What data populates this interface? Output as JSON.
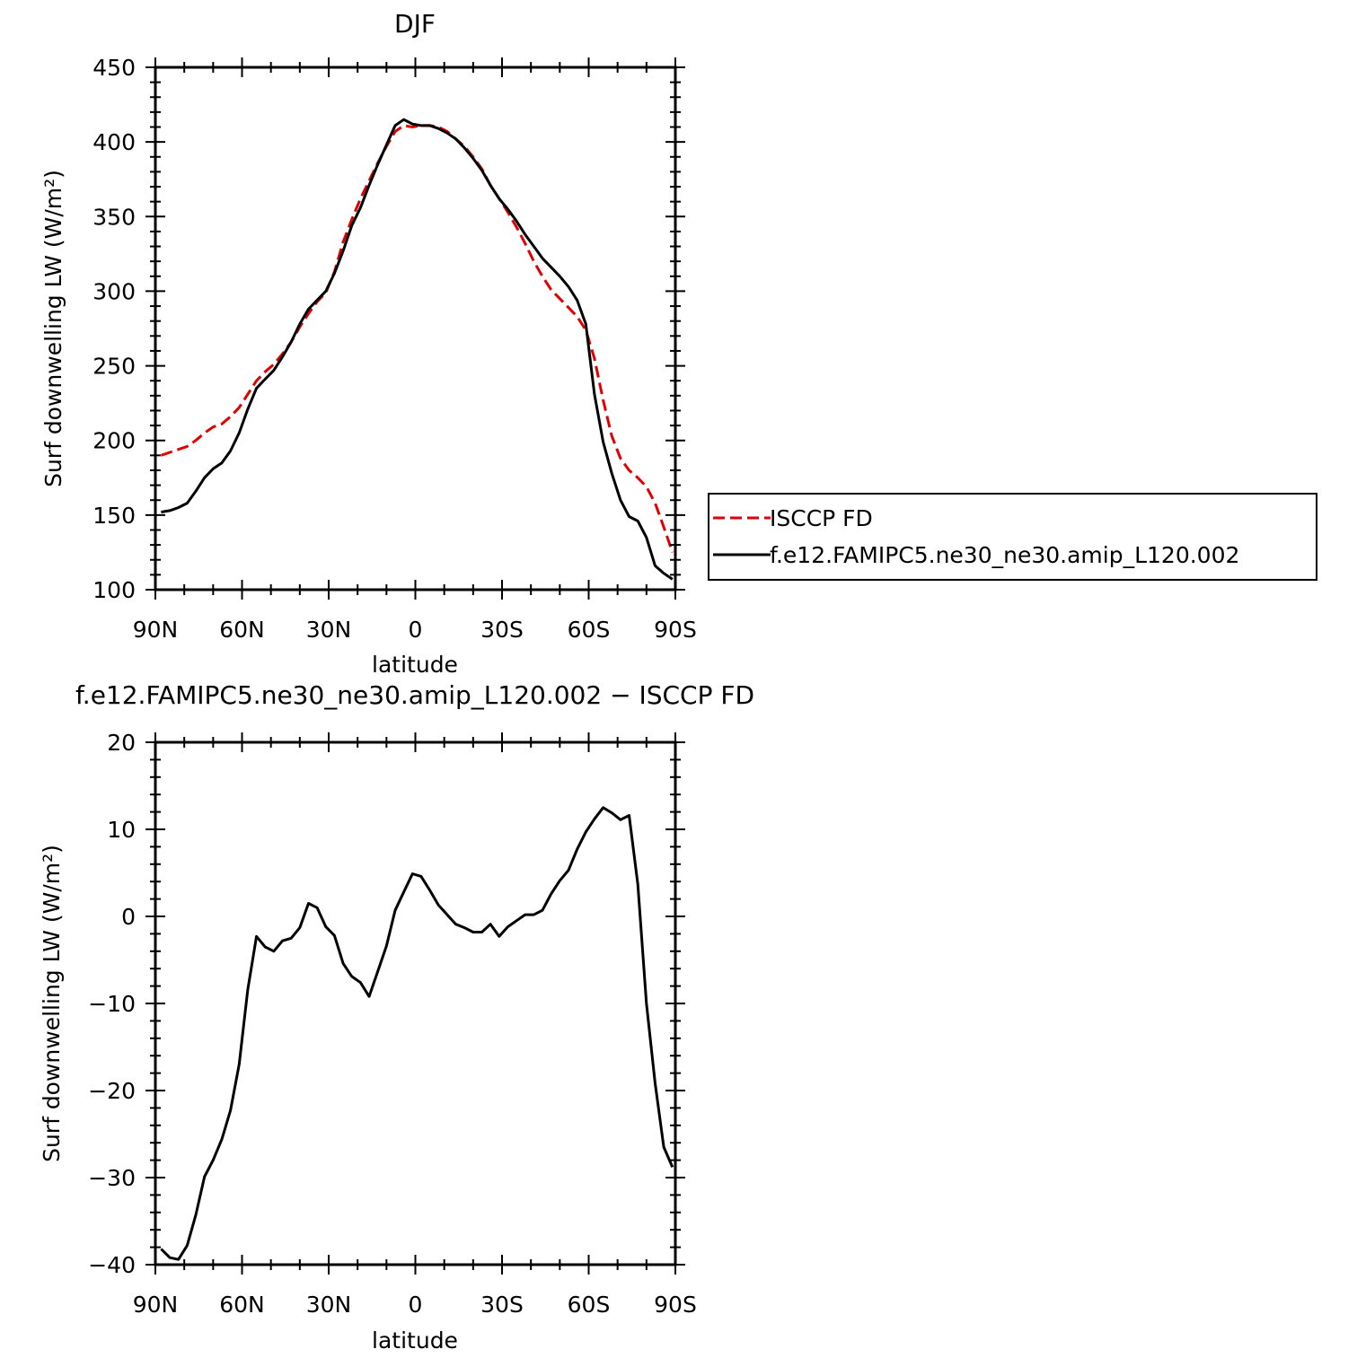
{
  "colors": {
    "isccp": "#e00000",
    "model": "#000000",
    "axis": "#000000"
  },
  "chart_data": [
    {
      "type": "line",
      "title": "DJF",
      "xlabel": "latitude",
      "ylabel": "Surf downwelling LW (W/m²)",
      "xlim": [
        90,
        -90
      ],
      "ylim": [
        100,
        450
      ],
      "xticks": [
        90,
        60,
        30,
        0,
        -30,
        -60,
        -90
      ],
      "xtick_labels": [
        "90N",
        "60N",
        "30N",
        "0",
        "30S",
        "60S",
        "90S"
      ],
      "yticks": [
        100,
        150,
        200,
        250,
        300,
        350,
        400,
        450
      ],
      "ytick_labels": [
        "100",
        "150",
        "200",
        "250",
        "300",
        "350",
        "400",
        "450"
      ],
      "grid": false,
      "legend_position": "right",
      "series": [
        {
          "name": "ISCCP FD",
          "style": "dashed",
          "color": "#e00000",
          "x": [
            88,
            85,
            82,
            79,
            76,
            73,
            70,
            67,
            64,
            61,
            58,
            55,
            52,
            49,
            46,
            43,
            40,
            37,
            34,
            31,
            28,
            25,
            22,
            19,
            16,
            13,
            10,
            7,
            4,
            1,
            -2,
            -5,
            -8,
            -11,
            -14,
            -17,
            -20,
            -23,
            -26,
            -29,
            -32,
            -35,
            -38,
            -41,
            -44,
            -47,
            -50,
            -53,
            -56,
            -59,
            -62,
            -65,
            -68,
            -71,
            -74,
            -77,
            -80,
            -83,
            -86,
            -89
          ],
          "y": [
            190,
            192,
            194,
            196,
            200,
            205,
            209,
            211,
            216,
            222,
            231,
            240,
            246,
            251,
            258,
            266,
            276,
            285,
            293,
            299,
            313,
            333,
            348,
            362,
            374,
            386,
            397,
            407,
            411,
            410,
            411,
            411,
            410,
            407,
            402,
            397,
            390,
            382,
            371,
            362,
            353,
            343,
            332,
            320,
            310,
            301,
            295,
            289,
            283,
            274,
            255,
            227,
            203,
            188,
            180,
            175,
            169,
            158,
            142,
            125
          ]
        },
        {
          "name": "f.e12.FAMIPC5.ne30_ne30.amip_L120.002",
          "style": "solid",
          "color": "#000000",
          "x": [
            88,
            85,
            82,
            79,
            76,
            73,
            70,
            67,
            64,
            61,
            58,
            55,
            52,
            49,
            46,
            43,
            40,
            37,
            34,
            31,
            28,
            25,
            22,
            19,
            16,
            13,
            10,
            7,
            4,
            1,
            -2,
            -5,
            -8,
            -11,
            -14,
            -17,
            -20,
            -23,
            -26,
            -29,
            -32,
            -35,
            -38,
            -41,
            -44,
            -47,
            -50,
            -53,
            -56,
            -59,
            -62,
            -65,
            -68,
            -71,
            -74,
            -77,
            -80,
            -83,
            -86,
            -89
          ],
          "y": [
            152,
            153,
            155,
            158,
            166,
            175,
            181,
            185,
            193,
            205,
            221,
            235,
            241,
            247,
            256,
            266,
            278,
            288,
            294,
            300,
            312,
            327,
            344,
            356,
            371,
            385,
            398,
            411,
            415,
            412,
            411,
            411,
            409,
            406,
            402,
            396,
            389,
            381,
            371,
            362,
            355,
            347,
            338,
            330,
            322,
            316,
            310,
            303,
            294,
            278,
            231,
            199,
            178,
            160,
            149,
            146,
            135,
            116,
            111,
            107
          ]
        }
      ]
    },
    {
      "type": "line",
      "title": "f.e12.FAMIPC5.ne30_ne30.amip_L120.002 − ISCCP FD",
      "xlabel": "latitude",
      "ylabel": "Surf downwelling LW (W/m²)",
      "xlim": [
        90,
        -90
      ],
      "ylim": [
        -40,
        20
      ],
      "xticks": [
        90,
        60,
        30,
        0,
        -30,
        -60,
        -90
      ],
      "xtick_labels": [
        "90N",
        "60N",
        "30N",
        "0",
        "30S",
        "60S",
        "90S"
      ],
      "yticks": [
        -40,
        -30,
        -20,
        -10,
        0,
        10,
        20
      ],
      "ytick_labels": [
        "−40",
        "−30",
        "−20",
        "−10",
        "0",
        "10",
        "20"
      ],
      "grid": false,
      "series": [
        {
          "style": "solid",
          "color": "#000000",
          "x": [
            88,
            85,
            82,
            79,
            76,
            73,
            70,
            67,
            64,
            61,
            58,
            55,
            52,
            49,
            46,
            43,
            40,
            37,
            34,
            31,
            28,
            25,
            22,
            19,
            16,
            13,
            10,
            7,
            4,
            1,
            -2,
            -5,
            -8,
            -11,
            -14,
            -17,
            -20,
            -23,
            -26,
            -29,
            -32,
            -35,
            -38,
            -41,
            -44,
            -47,
            -50,
            -53,
            -56,
            -59,
            -62,
            -65,
            -68,
            -71,
            -74,
            -77,
            -80,
            -83,
            -86,
            -89
          ],
          "y": [
            -38.2,
            -39.2,
            -39.4,
            -37.8,
            -34.3,
            -29.9,
            -28.0,
            -25.6,
            -22.3,
            -17.0,
            -8.4,
            -2.3,
            -3.5,
            -4.0,
            -2.8,
            -2.5,
            -1.3,
            1.5,
            1.0,
            -1.2,
            -2.2,
            -5.4,
            -6.9,
            -7.6,
            -9.2,
            -6.3,
            -3.4,
            0.7,
            2.8,
            4.9,
            4.6,
            3.0,
            1.3,
            0.2,
            -0.9,
            -1.3,
            -1.8,
            -1.8,
            -0.9,
            -2.3,
            -1.2,
            -0.5,
            0.2,
            0.2,
            0.7,
            2.6,
            4.1,
            5.3,
            7.7,
            9.7,
            11.2,
            12.5,
            11.9,
            11.1,
            11.6,
            3.7,
            -10.0,
            -19.2,
            -26.5,
            -28.8
          ]
        }
      ]
    }
  ]
}
